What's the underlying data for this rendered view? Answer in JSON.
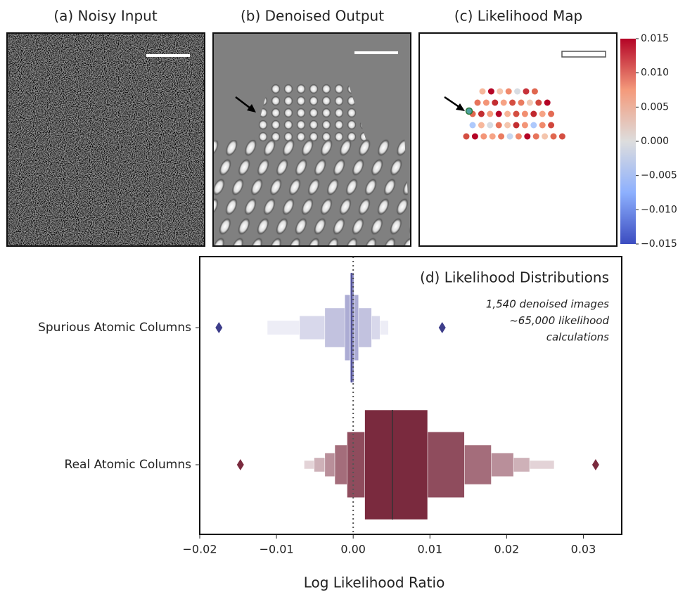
{
  "panels": {
    "a": {
      "title": "(a) Noisy Input"
    },
    "b": {
      "title": "(b) Denoised Output"
    },
    "c": {
      "title": "(c) Likelihood Map"
    }
  },
  "colorbar": {
    "lim": [
      -0.015,
      0.015
    ],
    "ticks": [
      0.015,
      {
        "value": 0.01,
        "label": "0.010"
      },
      0.005,
      {
        "value": 0,
        "label": "0.000"
      },
      {
        "value": -0.005,
        "label": "−0.005"
      },
      {
        "value": -0.01,
        "label": "−0.010"
      },
      {
        "value": -0.015,
        "label": "−0.015"
      }
    ]
  },
  "chart_data": {
    "type": "boxen",
    "title": "(d) Likelihood Distributions",
    "annotation": [
      "1,540 denoised images",
      "~65,000 likelihood",
      "calculations"
    ],
    "categories": [
      "Spurious Atomic Columns",
      "Real Atomic Columns"
    ],
    "x_label": "Log Likelihood Ratio",
    "xlim": [
      -0.02,
      0.035
    ],
    "xticks": [
      {
        "value": -0.02,
        "label": "−0.02"
      },
      {
        "value": -0.01,
        "label": "−0.01"
      },
      {
        "value": 0,
        "label": "0.00"
      },
      0.01,
      0.02,
      0.03
    ],
    "reference_line": 0,
    "series": [
      {
        "color": "#8a8ac2",
        "median": -0.0002,
        "letter_values": [
          [
            -0.0004,
            0.0001
          ],
          [
            -0.0011,
            0.0007
          ],
          [
            -0.0037,
            0.0024
          ],
          [
            -0.007,
            0.0035
          ],
          [
            -0.0112,
            0.0046
          ]
        ],
        "outliers": [
          -0.0175,
          0.0116
        ],
        "outlier_color": "#3d3d8a"
      },
      {
        "color": "#7a2a3e",
        "median": 0.0051,
        "letter_values": [
          [
            0.0015,
            0.0097
          ],
          [
            -0.0008,
            0.0145
          ],
          [
            -0.0024,
            0.018
          ],
          [
            -0.0037,
            0.0209
          ],
          [
            -0.0051,
            0.023
          ],
          [
            -0.0064,
            0.0262
          ]
        ],
        "outliers": [
          -0.0147,
          0.0316
        ],
        "outlier_color": "#7a2a3e"
      }
    ]
  }
}
